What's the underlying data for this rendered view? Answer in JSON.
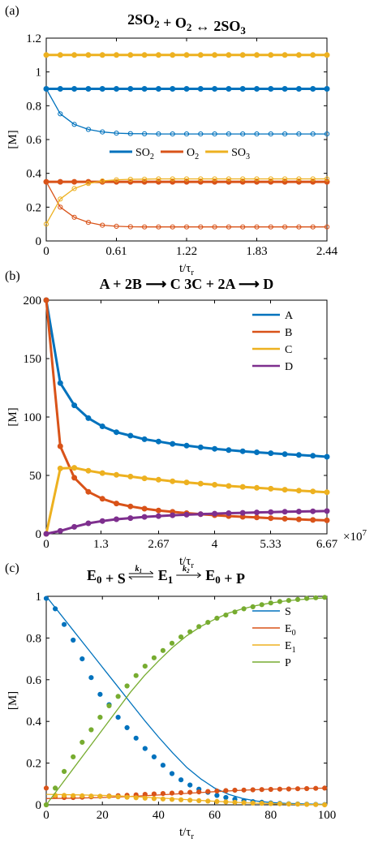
{
  "chart_data": [
    {
      "panel": "(a)",
      "type": "line",
      "title_parts": [
        {
          "t": "2SO"
        },
        {
          "t": "2",
          "sub": true
        },
        {
          "t": " + O"
        },
        {
          "t": "2",
          "sub": true
        },
        {
          "t": " ↔ 2SO"
        },
        {
          "t": "3",
          "sub": true
        }
      ],
      "xlabel": "t/τ",
      "xlabel_sub": "r",
      "ylabel": "[M]",
      "xlim": [
        0,
        2.44
      ],
      "ylim": [
        0,
        1.2
      ],
      "xticks": [
        "0",
        "0.61",
        "1.22",
        "1.83",
        "2.44"
      ],
      "xtick_values": [
        0,
        0.61,
        1.22,
        1.83,
        2.44
      ],
      "yticks": [
        "0",
        "0.2",
        "0.4",
        "0.6",
        "0.8",
        "1",
        "1.2"
      ],
      "ytick_values": [
        0,
        0.2,
        0.4,
        0.6,
        0.8,
        1.0,
        1.2
      ],
      "legend": {
        "placement": "center",
        "orientation": "horizontal",
        "entries": [
          {
            "parts": [
              {
                "t": "SO"
              },
              {
                "t": "2",
                "sub": true
              }
            ],
            "color": "#0072BD"
          },
          {
            "parts": [
              {
                "t": "O"
              },
              {
                "t": "2",
                "sub": true
              }
            ],
            "color": "#D95319"
          },
          {
            "parts": [
              {
                "t": "SO"
              },
              {
                "t": "3",
                "sub": true
              }
            ],
            "color": "#EDB120"
          }
        ]
      },
      "series": [
        {
          "color": "#0072BD",
          "style": "thick",
          "marker": "filled",
          "x_start": 0,
          "x_step": 0.122,
          "n": 21,
          "values": [
            0.9
          ]
        },
        {
          "color": "#EDB120",
          "style": "thick",
          "marker": "filled",
          "x_start": 0,
          "x_step": 0.122,
          "n": 21,
          "values": [
            1.1
          ]
        },
        {
          "color": "#D95319",
          "style": "thick",
          "marker": "filled",
          "x_start": 0,
          "x_step": 0.122,
          "n": 21,
          "values": [
            0.35
          ]
        },
        {
          "color": "#0072BD",
          "style": "thin",
          "marker": "open",
          "x_start": 0,
          "x_step": 0.122,
          "n": 21,
          "values": [
            0.9,
            0.752,
            0.69,
            0.66,
            0.645,
            0.638,
            0.635,
            0.634,
            0.633,
            0.633,
            0.633,
            0.633,
            0.633,
            0.633,
            0.633,
            0.633,
            0.633,
            0.633,
            0.633,
            0.633,
            0.633
          ]
        },
        {
          "color": "#D95319",
          "style": "thin",
          "marker": "open",
          "x_start": 0,
          "x_step": 0.122,
          "n": 21,
          "values": [
            0.35,
            0.2,
            0.14,
            0.11,
            0.093,
            0.087,
            0.084,
            0.083,
            0.083,
            0.083,
            0.083,
            0.083,
            0.083,
            0.083,
            0.083,
            0.083,
            0.083,
            0.083,
            0.083,
            0.083,
            0.083
          ]
        },
        {
          "color": "#EDB120",
          "style": "thin",
          "marker": "open",
          "x_start": 0,
          "x_step": 0.122,
          "n": 21,
          "values": [
            0.1,
            0.248,
            0.31,
            0.34,
            0.355,
            0.362,
            0.365,
            0.366,
            0.367,
            0.367,
            0.367,
            0.367,
            0.367,
            0.367,
            0.367,
            0.367,
            0.367,
            0.367,
            0.367,
            0.367,
            0.367
          ]
        }
      ]
    },
    {
      "panel": "(b)",
      "type": "line",
      "title_parts": [
        {
          "t": "A + 2B ⟶ C     3C + 2A ⟶ D"
        }
      ],
      "xlabel": "t/τ",
      "xlabel_sub": "r",
      "ylabel": "[M]",
      "x_multiplier": "×10",
      "x_multiplier_exp": "7",
      "xlim": [
        0,
        6.67
      ],
      "ylim": [
        0,
        200
      ],
      "xticks": [
        "0",
        "1.3",
        "2.67",
        "4",
        "5.33",
        "6.67"
      ],
      "xtick_values": [
        0,
        1.3,
        2.67,
        4,
        5.33,
        6.67
      ],
      "yticks": [
        "0",
        "50",
        "100",
        "150",
        "200"
      ],
      "ytick_values": [
        0,
        50,
        100,
        150,
        200
      ],
      "legend": {
        "placement": "top-right",
        "orientation": "vertical",
        "entries": [
          {
            "parts": [
              {
                "t": "A"
              }
            ],
            "color": "#0072BD"
          },
          {
            "parts": [
              {
                "t": "B"
              }
            ],
            "color": "#D95319"
          },
          {
            "parts": [
              {
                "t": "C"
              }
            ],
            "color": "#EDB120"
          },
          {
            "parts": [
              {
                "t": "D"
              }
            ],
            "color": "#7E2F8E"
          }
        ]
      },
      "series": [
        {
          "name": "A",
          "color": "#0072BD",
          "style": "thick",
          "marker": "filled",
          "x_start": 0,
          "x_step": 0.3335,
          "n": 21,
          "values": [
            200,
            129,
            110,
            99,
            92,
            87,
            84,
            81,
            79,
            77,
            75.5,
            74,
            72.8,
            71.7,
            70.7,
            69.8,
            69,
            68.2,
            67.5,
            66.8,
            66
          ]
        },
        {
          "name": "B",
          "color": "#D95319",
          "style": "thick",
          "marker": "filled",
          "x_start": 0,
          "x_step": 0.3335,
          "n": 21,
          "values": [
            200,
            75,
            48,
            36,
            30,
            26,
            23.5,
            21.5,
            20,
            18.8,
            17.7,
            16.8,
            16,
            15.2,
            14.6,
            14,
            13.4,
            12.9,
            12.4,
            11.9,
            11.5
          ]
        },
        {
          "name": "C",
          "color": "#EDB120",
          "style": "thick",
          "marker": "filled",
          "x_start": 0,
          "x_step": 0.3335,
          "n": 21,
          "values": [
            0,
            56,
            56.5,
            54,
            52,
            50.5,
            49,
            47.5,
            46.3,
            45,
            44,
            43,
            42,
            41,
            40.2,
            39.4,
            38.6,
            37.8,
            37,
            36.3,
            35.6
          ]
        },
        {
          "name": "D",
          "color": "#7E2F8E",
          "style": "thick",
          "marker": "filled",
          "x_start": 0,
          "x_step": 0.3335,
          "n": 21,
          "values": [
            0,
            2.5,
            6,
            9,
            11,
            12.5,
            13.5,
            14.5,
            15.2,
            15.9,
            16.4,
            16.9,
            17.3,
            17.7,
            18,
            18.3,
            18.6,
            18.9,
            19.1,
            19.3,
            19.5
          ]
        }
      ]
    },
    {
      "panel": "(c)",
      "type": "line",
      "title_parts": [
        {
          "t": "E"
        },
        {
          "t": "0",
          "sub": true
        },
        {
          "t": " + S "
        },
        {
          "t": "⇄",
          "arrow": true,
          "k_top": "k",
          "k_top_sub": "1"
        },
        {
          "t": " E"
        },
        {
          "t": "1",
          "sub": true
        },
        {
          "t": " "
        },
        {
          "t": "⟶",
          "arrow": true,
          "k_top": "k",
          "k_top_sub": "2"
        },
        {
          "t": " E"
        },
        {
          "t": "0",
          "sub": true
        },
        {
          "t": " + P"
        }
      ],
      "xlabel": "t/τ",
      "xlabel_sub": "r",
      "ylabel": "[M]",
      "xlim": [
        0,
        100
      ],
      "ylim": [
        0,
        1
      ],
      "xticks": [
        "0",
        "20",
        "40",
        "60",
        "80",
        "100"
      ],
      "xtick_values": [
        0,
        20,
        40,
        60,
        80,
        100
      ],
      "yticks": [
        "0",
        "0.2",
        "0.4",
        "0.6",
        "0.8",
        "1"
      ],
      "ytick_values": [
        0,
        0.2,
        0.4,
        0.6,
        0.8,
        1
      ],
      "legend": {
        "placement": "top-right",
        "orientation": "vertical",
        "entries": [
          {
            "parts": [
              {
                "t": "S"
              }
            ],
            "color": "#0072BD"
          },
          {
            "parts": [
              {
                "t": "E"
              },
              {
                "t": "0",
                "sub": true
              }
            ],
            "color": "#D95319"
          },
          {
            "parts": [
              {
                "t": "E"
              },
              {
                "t": "1",
                "sub": true
              }
            ],
            "color": "#EDB120"
          },
          {
            "parts": [
              {
                "t": "P"
              }
            ],
            "color": "#77AC30"
          }
        ]
      },
      "series": [
        {
          "name": "S",
          "color": "#0072BD",
          "style": "thin",
          "line_x": [
            0,
            5,
            10,
            15,
            20,
            25,
            30,
            35,
            40,
            45,
            50,
            55,
            60,
            65,
            70,
            75,
            80,
            85,
            90,
            95,
            100
          ],
          "line_y": [
            1.0,
            0.915,
            0.83,
            0.745,
            0.66,
            0.575,
            0.49,
            0.405,
            0.325,
            0.25,
            0.18,
            0.125,
            0.08,
            0.05,
            0.03,
            0.018,
            0.011,
            0.007,
            0.005,
            0.003,
            0.002
          ],
          "marker": "filled",
          "x_start": 0,
          "x_step": 3.2,
          "n": 32,
          "values": [
            0.99,
            0.94,
            0.865,
            0.79,
            0.7,
            0.61,
            0.53,
            0.48,
            0.42,
            0.37,
            0.32,
            0.27,
            0.23,
            0.19,
            0.15,
            0.12,
            0.095,
            0.075,
            0.06,
            0.045,
            0.035,
            0.027,
            0.02,
            0.015,
            0.012,
            0.009,
            0.007,
            0.005,
            0.004,
            0.003,
            0.002,
            0.001
          ]
        },
        {
          "name": "E0",
          "color": "#D95319",
          "style": "thin",
          "line_x": [
            0,
            10,
            20,
            30,
            40,
            50,
            60,
            70,
            80,
            90,
            100
          ],
          "line_y": [
            0.03,
            0.032,
            0.035,
            0.04,
            0.047,
            0.055,
            0.063,
            0.07,
            0.075,
            0.078,
            0.08
          ],
          "marker": "filled",
          "x_start": 0,
          "x_step": 3.2,
          "n": 32,
          "values": [
            0.08,
            0.04,
            0.035,
            0.035,
            0.036,
            0.038,
            0.04,
            0.042,
            0.044,
            0.046,
            0.048,
            0.05,
            0.052,
            0.054,
            0.056,
            0.058,
            0.06,
            0.062,
            0.064,
            0.066,
            0.068,
            0.07,
            0.071,
            0.072,
            0.073,
            0.074,
            0.075,
            0.076,
            0.077,
            0.078,
            0.079,
            0.08
          ]
        },
        {
          "name": "E1",
          "color": "#EDB120",
          "style": "thin",
          "line_x": [
            0,
            10,
            20,
            30,
            40,
            50,
            60,
            70,
            80,
            90,
            100
          ],
          "line_y": [
            0.05,
            0.048,
            0.045,
            0.04,
            0.033,
            0.025,
            0.017,
            0.01,
            0.005,
            0.002,
            0.0
          ],
          "marker": "filled",
          "x_start": 0,
          "x_step": 3.2,
          "n": 32,
          "values": [
            0.0,
            0.045,
            0.045,
            0.044,
            0.043,
            0.042,
            0.041,
            0.04,
            0.038,
            0.036,
            0.034,
            0.032,
            0.03,
            0.028,
            0.026,
            0.024,
            0.022,
            0.02,
            0.018,
            0.016,
            0.014,
            0.012,
            0.01,
            0.008,
            0.007,
            0.006,
            0.005,
            0.004,
            0.003,
            0.002,
            0.001,
            0.0
          ]
        },
        {
          "name": "P",
          "color": "#77AC30",
          "style": "thin",
          "line_x": [
            0,
            5,
            10,
            15,
            20,
            25,
            30,
            35,
            40,
            45,
            50,
            55,
            60,
            65,
            70,
            75,
            80,
            85,
            90,
            95,
            100
          ],
          "line_y": [
            0.0,
            0.09,
            0.18,
            0.27,
            0.36,
            0.45,
            0.54,
            0.62,
            0.69,
            0.755,
            0.81,
            0.855,
            0.89,
            0.92,
            0.94,
            0.956,
            0.968,
            0.977,
            0.984,
            0.989,
            0.993
          ],
          "marker": "filled",
          "x_start": 0,
          "x_step": 3.2,
          "n": 32,
          "values": [
            0.0,
            0.08,
            0.16,
            0.23,
            0.3,
            0.36,
            0.42,
            0.475,
            0.52,
            0.57,
            0.62,
            0.665,
            0.705,
            0.74,
            0.775,
            0.805,
            0.83,
            0.855,
            0.875,
            0.895,
            0.91,
            0.925,
            0.94,
            0.95,
            0.96,
            0.968,
            0.975,
            0.98,
            0.985,
            0.99,
            0.993,
            0.995
          ]
        }
      ]
    }
  ]
}
